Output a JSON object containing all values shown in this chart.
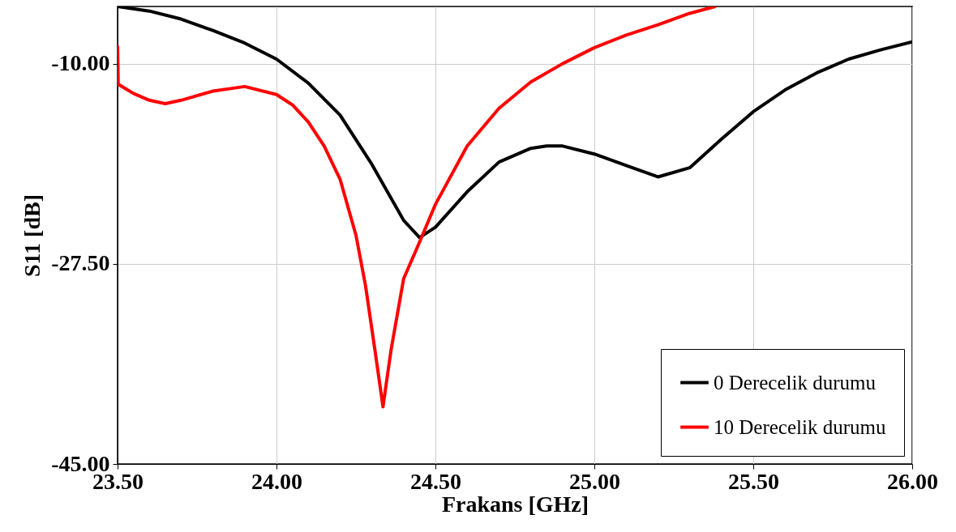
{
  "chart_data": {
    "type": "line",
    "xlabel": "Frakans [GHz]",
    "ylabel": "S11 [dB]",
    "xlim": [
      23.5,
      26.0
    ],
    "xticks": [
      {
        "value": 23.5,
        "label": "23.50"
      },
      {
        "value": 24.0,
        "label": "24.00"
      },
      {
        "value": 24.5,
        "label": "24.50"
      },
      {
        "value": 25.0,
        "label": "25.00"
      },
      {
        "value": 25.5,
        "label": "25.50"
      },
      {
        "value": 26.0,
        "label": "26.00"
      }
    ],
    "ylim": [
      -45,
      -5
    ],
    "yticks": [
      {
        "value": -45,
        "label": "-45.00"
      },
      {
        "value": -27.5,
        "label": "-27.50"
      },
      {
        "value": -10,
        "label": "-10.00"
      }
    ],
    "grid": true,
    "legend": "bottom right",
    "line_style": "solid",
    "series": [
      {
        "name": "0 Derecelik durumu",
        "color": "#000000",
        "x": [
          23.5,
          23.6,
          23.7,
          23.8,
          23.9,
          24.0,
          24.1,
          24.2,
          24.3,
          24.4,
          24.45,
          24.5,
          24.6,
          24.7,
          24.8,
          24.85,
          24.9,
          25.0,
          25.1,
          25.2,
          25.3,
          25.4,
          25.5,
          25.6,
          25.7,
          25.8,
          25.9,
          26.0
        ],
        "values": [
          -5.0,
          -5.4,
          -6.1,
          -7.1,
          -8.2,
          -9.6,
          -11.7,
          -14.5,
          -18.8,
          -23.7,
          -25.2,
          -24.3,
          -21.2,
          -18.6,
          -17.4,
          -17.2,
          -17.2,
          -17.9,
          -18.9,
          -19.9,
          -19.1,
          -16.6,
          -14.2,
          -12.3,
          -10.8,
          -9.6,
          -8.8,
          -8.1
        ]
      },
      {
        "name": "10 Derecelik durumu",
        "color": "#ff0000",
        "x": [
          23.5,
          23.502,
          23.55,
          23.6,
          23.65,
          23.7,
          23.8,
          23.9,
          24.0,
          24.05,
          24.1,
          24.15,
          24.2,
          24.25,
          24.28,
          24.31,
          24.335,
          24.36,
          24.4,
          24.45,
          24.5,
          24.6,
          24.7,
          24.8,
          24.9,
          25.0,
          25.1,
          25.2,
          25.3,
          25.38
        ],
        "values": [
          -8.5,
          -11.8,
          -12.6,
          -13.2,
          -13.5,
          -13.2,
          -12.4,
          -12.0,
          -12.7,
          -13.6,
          -15.1,
          -17.2,
          -20.1,
          -25.0,
          -29.4,
          -35.1,
          -40.0,
          -35.1,
          -28.8,
          -25.6,
          -22.3,
          -17.2,
          -13.9,
          -11.6,
          -10.0,
          -8.6,
          -7.5,
          -6.6,
          -5.6,
          -5.0
        ]
      }
    ]
  }
}
